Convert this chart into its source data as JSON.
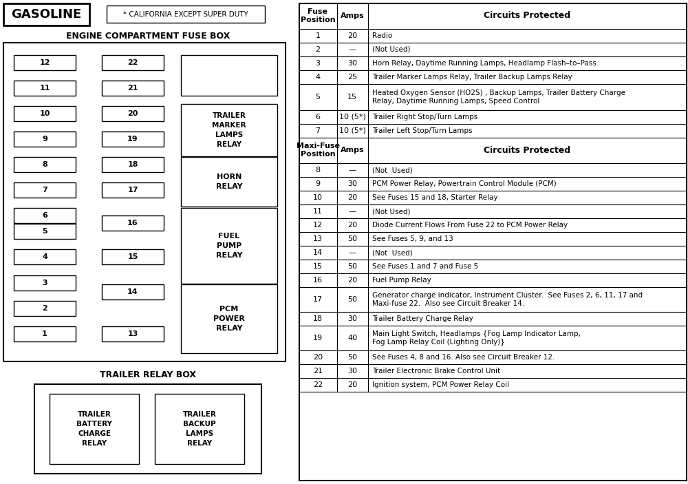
{
  "title_gasoline": "GASOLINE",
  "title_note": "* CALIFORNIA EXCEPT SUPER DUTY",
  "engine_title": "ENGINE COMPARTMENT FUSE BOX",
  "trailer_title": "TRAILER RELAY BOX",
  "fuse_rows": [
    [
      "1",
      "20",
      "Radio"
    ],
    [
      "2",
      "—",
      "(Not Used)"
    ],
    [
      "3",
      "30",
      "Horn Relay, Daytime Running Lamps, Headlamp Flash–to–Pass"
    ],
    [
      "4",
      "25",
      "Trailer Marker Lamps Relay, Trailer Backup Lamps Relay"
    ],
    [
      "5",
      "15",
      "Heated Oxygen Sensor (HO2S) , Backup Lamps, Trailer Battery Charge\nRelay, Daytime Running Lamps, Speed Control"
    ],
    [
      "6",
      "10 (5*)",
      "Trailer Right Stop/Turn Lamps"
    ],
    [
      "7",
      "10 (5*)",
      "Trailer Left Stop/Turn Lamps"
    ]
  ],
  "maxi_header": [
    "Maxi-Fuse\nPosition",
    "Amps",
    "Circuits Protected"
  ],
  "maxi_rows": [
    [
      "8",
      "—",
      "(Not  Used)"
    ],
    [
      "9",
      "30",
      "PCM Power Relay, Powertrain Control Module (PCM)"
    ],
    [
      "10",
      "20",
      "See Fuses 15 and 18, Starter Relay"
    ],
    [
      "11",
      "—",
      "(Not Used)"
    ],
    [
      "12",
      "20",
      "Diode Current Flows From Fuse 22 to PCM Power Relay"
    ],
    [
      "13",
      "50",
      "See Fuses 5, 9, and 13"
    ],
    [
      "14",
      "—",
      "(Not  Used)"
    ],
    [
      "15",
      "50",
      "See Fuses 1 and 7 and Fuse 5"
    ],
    [
      "16",
      "20",
      "Fuel Pump Relay"
    ],
    [
      "17",
      "50",
      "Generator charge indicator, Instrument Cluster.  See Fuses 2, 6, 11, 17 and\nMaxi-fuse 22.  Also see Circuit Breaker 14."
    ],
    [
      "18",
      "30",
      "Trailer Battery Charge Relay"
    ],
    [
      "19",
      "40",
      "Main Light Switch, Headlamps {Fog Lamp Indicator Lamp,\nFog Lamp Relay Coil (Lighting Only)}"
    ],
    [
      "20",
      "50",
      "See Fuses 4, 8 and 16. Also see Circuit Breaker 12."
    ],
    [
      "21",
      "30",
      "Trailer Electronic Brake Control Unit"
    ],
    [
      "22",
      "20",
      "Ignition system, PCM Power Relay Coil"
    ]
  ],
  "bg_color": "#ffffff"
}
